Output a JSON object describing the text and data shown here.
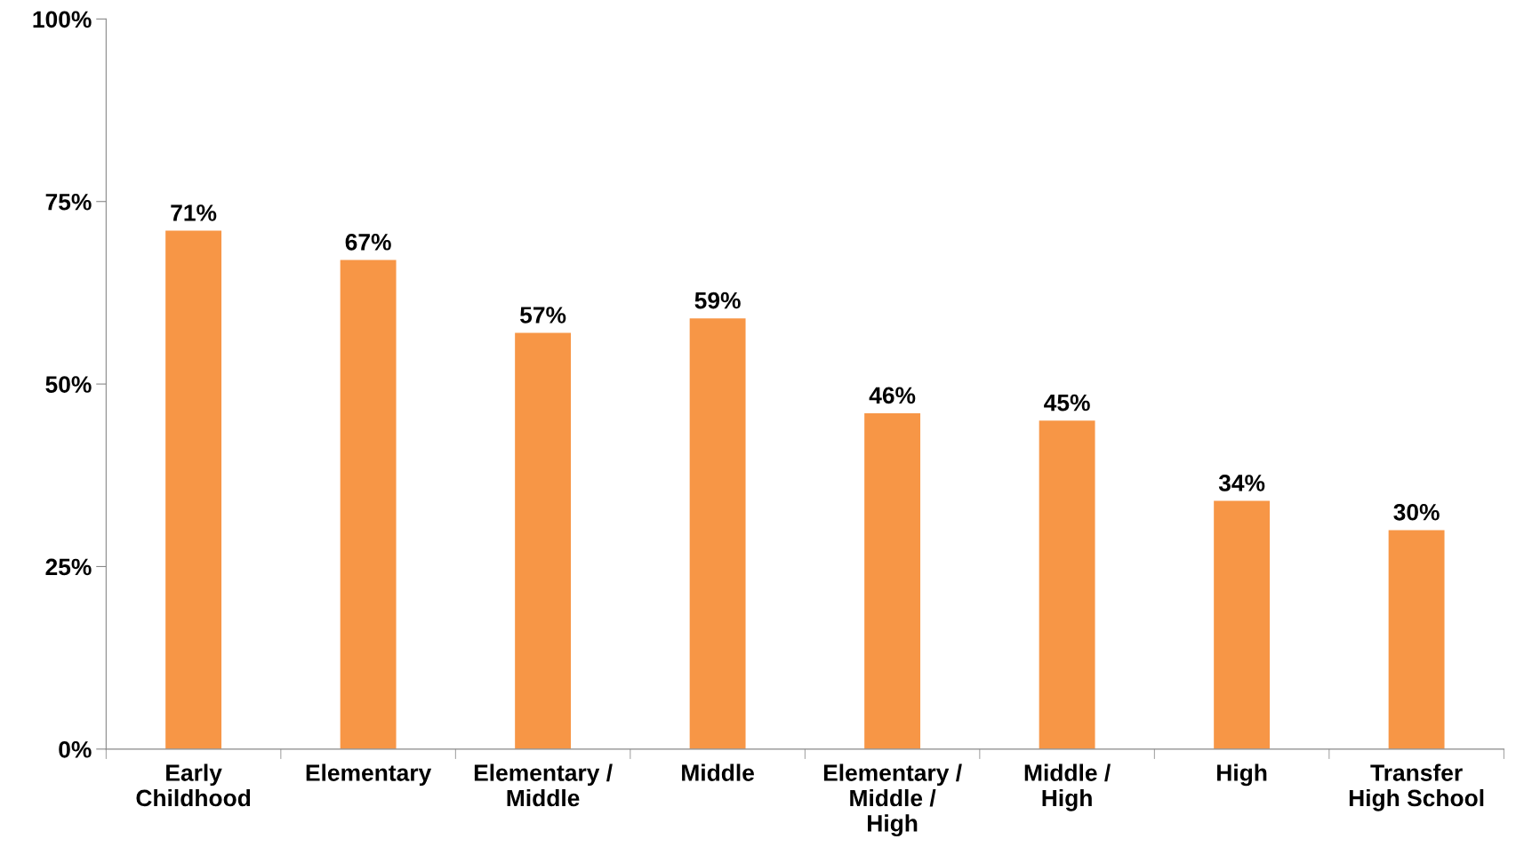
{
  "chart_data": {
    "type": "bar",
    "categories": [
      "Early\nChildhood",
      "Elementary",
      "Elementary /\nMiddle",
      "Middle",
      "Elementary /\nMiddle /\nHigh",
      "Middle /\nHigh",
      "High",
      "Transfer\nHigh School"
    ],
    "values": [
      71,
      67,
      57,
      59,
      46,
      45,
      34,
      30
    ],
    "value_labels": [
      "71%",
      "67%",
      "57%",
      "59%",
      "46%",
      "45%",
      "34%",
      "30%"
    ],
    "color": "#f79646",
    "ylim": [
      0,
      100
    ],
    "yticks": [
      {
        "value": 0,
        "label": "0%"
      },
      {
        "value": 25,
        "label": "25%"
      },
      {
        "value": 50,
        "label": "50%"
      },
      {
        "value": 75,
        "label": "75%"
      },
      {
        "value": 100,
        "label": "100%"
      }
    ],
    "grid": false,
    "legend": false
  }
}
